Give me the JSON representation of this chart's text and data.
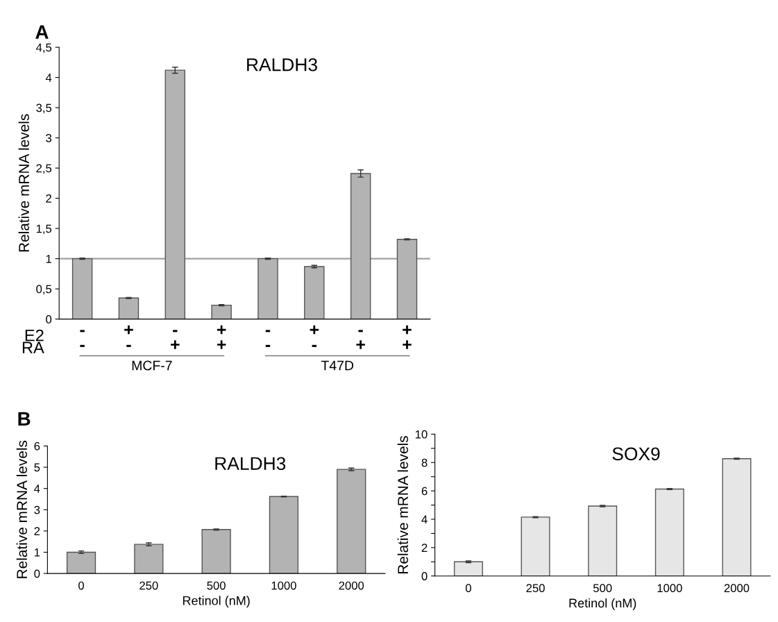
{
  "chart_data": [
    {
      "type": "bar",
      "title": "RALDH3",
      "ylabel": "Relative mRNA levels",
      "categories": [
        "-\n-",
        "+\n-",
        "-\n+",
        "+\n+",
        "-\n-",
        "+\n-",
        "-\n+",
        "+\n+"
      ],
      "values": [
        1.0,
        0.35,
        4.12,
        0.23,
        1.0,
        0.87,
        2.41,
        1.32
      ],
      "errors": [
        0.01,
        0.01,
        0.05,
        0.01,
        0.01,
        0.02,
        0.06,
        0.01
      ],
      "color": "#b3b3b3",
      "ylim": [
        0,
        4.5
      ],
      "yticks": [
        0,
        {
          "value": 0.5,
          "label": "0,5"
        },
        1,
        {
          "value": 1.5,
          "label": "1,5"
        },
        2,
        {
          "value": 2.5,
          "label": "2,5"
        },
        3,
        {
          "value": 3.5,
          "label": "3,5"
        },
        4,
        {
          "value": 4.5,
          "label": "4,5"
        }
      ],
      "ref_lines": [
        {
          "axis": "y",
          "value": 1,
          "color": "#a0a0a0"
        }
      ],
      "annotations": [
        "A",
        "E2",
        "RA",
        "MCF-7",
        "T47D"
      ],
      "grid": false,
      "legend": false
    },
    {
      "type": "bar",
      "title": "RALDH3",
      "ylabel": "Relative mRNA levels",
      "xlabel": "Retinol (nM)",
      "categories": [
        "0",
        "250",
        "500",
        "1000",
        "2000"
      ],
      "values": [
        1.0,
        1.37,
        2.07,
        3.62,
        4.9
      ],
      "errors": [
        0.06,
        0.07,
        0.03,
        0.02,
        0.06
      ],
      "color": "#b3b3b3",
      "ylim": [
        0,
        6
      ],
      "yticks": [
        0,
        1,
        2,
        3,
        4,
        5,
        6
      ],
      "annotations": [
        "B"
      ],
      "grid": false,
      "legend": false
    },
    {
      "type": "bar",
      "title": "SOX9",
      "ylabel": "Relative mRNA levels",
      "xlabel": "Retinol (nM)",
      "categories": [
        "0",
        "250",
        "500",
        "1000",
        "2000"
      ],
      "values": [
        1.0,
        4.15,
        4.93,
        6.13,
        8.27
      ],
      "errors": [
        0.06,
        0.04,
        0.05,
        0.04,
        0.04
      ],
      "color": "#e6e6e6",
      "ylim": [
        0,
        10
      ],
      "yticks": [
        0,
        {
          "value": 1,
          "label": null
        },
        2,
        {
          "value": 3,
          "label": null
        },
        4,
        {
          "value": 5,
          "label": null
        },
        6,
        {
          "value": 7,
          "label": null
        },
        8,
        {
          "value": 9,
          "label": null
        },
        10
      ],
      "grid": false,
      "legend": false
    }
  ]
}
